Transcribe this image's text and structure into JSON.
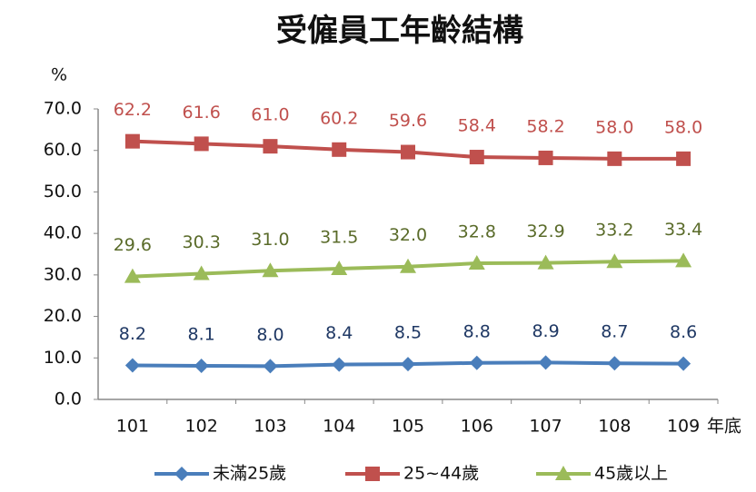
{
  "chart_data": {
    "type": "line",
    "title": "受僱員工年齡結構",
    "y_label": "%",
    "x_label": "年底",
    "categories": [
      "101",
      "102",
      "103",
      "104",
      "105",
      "106",
      "107",
      "108",
      "109"
    ],
    "series": [
      {
        "name": "未滿25歲",
        "color": "#4a7ebb",
        "label_color": "#1f3864",
        "marker": "diamond",
        "values": [
          8.2,
          8.1,
          8.0,
          8.4,
          8.5,
          8.8,
          8.9,
          8.7,
          8.6
        ],
        "value_labels": [
          "8.2",
          "8.1",
          "8.0",
          "8.4",
          "8.5",
          "8.8",
          "8.9",
          "8.7",
          "8.6"
        ]
      },
      {
        "name": "25~44歲",
        "color": "#c0504d",
        "label_color": "#c0504d",
        "marker": "square",
        "values": [
          62.2,
          61.6,
          61.0,
          60.2,
          59.6,
          58.4,
          58.2,
          58.0,
          58.0
        ],
        "value_labels": [
          "62.2",
          "61.6",
          "61.0",
          "60.2",
          "59.6",
          "58.4",
          "58.2",
          "58.0",
          "58.0"
        ]
      },
      {
        "name": "45歲以上",
        "color": "#9bbb59",
        "label_color": "#5a6b2a",
        "marker": "triangle",
        "values": [
          29.6,
          30.3,
          31.0,
          31.5,
          32.0,
          32.8,
          32.9,
          33.2,
          33.4
        ],
        "value_labels": [
          "29.6",
          "30.3",
          "31.0",
          "31.5",
          "32.0",
          "32.8",
          "32.9",
          "33.2",
          "33.4"
        ]
      }
    ],
    "ylim": [
      0,
      70
    ],
    "yticks": [
      {
        "value": 0,
        "label": "0.0"
      },
      {
        "value": 10,
        "label": "10.0"
      },
      {
        "value": 20,
        "label": "20.0"
      },
      {
        "value": 30,
        "label": "30.0"
      },
      {
        "value": 40,
        "label": "40.0"
      },
      {
        "value": 50,
        "label": "50.0"
      },
      {
        "value": 60,
        "label": "60.0"
      },
      {
        "value": 70,
        "label": "70.0"
      }
    ],
    "grid": false,
    "legend": "bottom"
  }
}
